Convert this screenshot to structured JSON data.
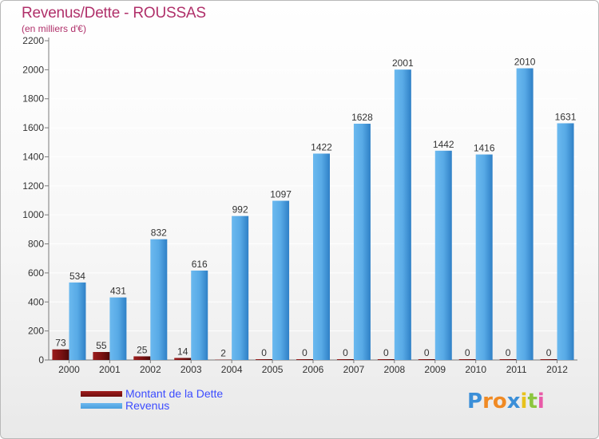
{
  "header": {
    "title": "Revenus/Dette - ROUSSAS",
    "subtitle": "(en milliers d'€)"
  },
  "logo": {
    "text": "Proxiti",
    "letters": [
      "P",
      "r",
      "o",
      "x",
      "i",
      "t",
      "i"
    ],
    "colors": [
      "#3b8fd8",
      "#f08a24",
      "#f08a24",
      "#3b8fd8",
      "#e8c21c",
      "#8cc63f",
      "#e95aa8"
    ]
  },
  "colors": {
    "dette": "#6e0e0e",
    "revenus": "#4a9fdf",
    "axis": "#7a7a7a",
    "grid": "#ffffff",
    "text": "#333333"
  },
  "chart_data": {
    "type": "bar",
    "title": "Revenus/Dette - ROUSSAS",
    "ylabel": "(en milliers d'€)",
    "xlabel": "",
    "ylim": [
      0,
      2200
    ],
    "yticks": [
      0,
      200,
      400,
      600,
      800,
      1000,
      1200,
      1400,
      1600,
      1800,
      2000,
      2200
    ],
    "categories": [
      "2000",
      "2001",
      "2002",
      "2003",
      "2004",
      "2005",
      "2006",
      "2007",
      "2008",
      "2009",
      "2010",
      "2011",
      "2012"
    ],
    "series": [
      {
        "name": "Montant de la Dette",
        "values": [
          73,
          55,
          25,
          14,
          2,
          0,
          0,
          0,
          0,
          0,
          0,
          0,
          0
        ]
      },
      {
        "name": "Revenus",
        "values": [
          534,
          431,
          832,
          616,
          992,
          1097,
          1422,
          1628,
          2001,
          1442,
          1416,
          2010,
          1631
        ]
      }
    ],
    "legend_position": "bottom-left",
    "grid": true
  }
}
